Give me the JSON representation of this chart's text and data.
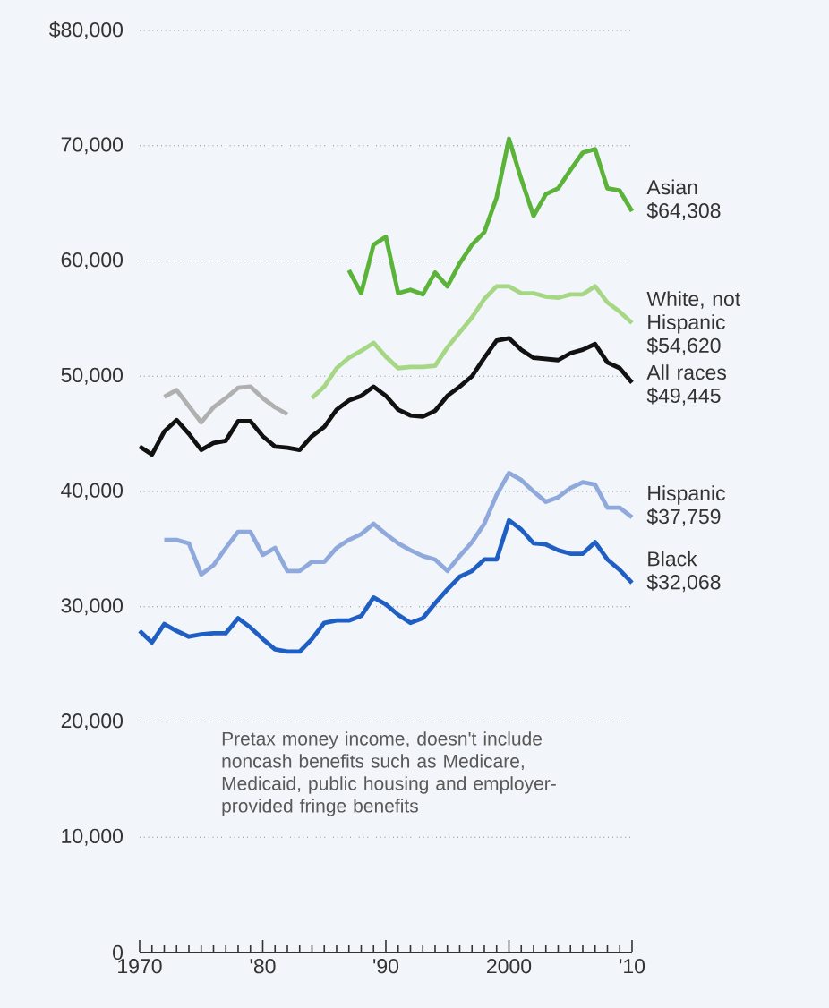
{
  "chart_data": {
    "type": "line",
    "ylim": [
      0,
      80000
    ],
    "yticks": [
      0,
      {
        "value": 10000,
        "label": "10,000"
      },
      {
        "value": 20000,
        "label": "20,000"
      },
      {
        "value": 30000,
        "label": "30,000"
      },
      {
        "value": 40000,
        "label": "40,000"
      },
      {
        "value": 50000,
        "label": "50,000"
      },
      {
        "value": 60000,
        "label": "60,000"
      },
      {
        "value": 70000,
        "label": "70,000"
      },
      {
        "value": 80000,
        "label": "$80,000"
      }
    ],
    "xlim": [
      1970,
      2010
    ],
    "xticks": [
      1970,
      {
        "value": 1980,
        "label": "'80"
      },
      {
        "value": 1990,
        "label": "'90"
      },
      2000,
      {
        "value": 2010,
        "label": "'10"
      }
    ],
    "grid": "y",
    "legend": false,
    "marker": "none",
    "line_style": "solid",
    "series": [
      {
        "name": "Asian",
        "color": "#5bb33a",
        "x": [
          1987,
          1988,
          1989,
          1990,
          1991,
          1992,
          1993,
          1994,
          1995,
          1996,
          1997,
          1998,
          1999,
          2000,
          2001,
          2002,
          2003,
          2004,
          2005,
          2006,
          2007,
          2008,
          2009,
          2010
        ],
        "values": [
          59200,
          57200,
          61400,
          62100,
          57200,
          57500,
          57100,
          59000,
          57800,
          59800,
          61400,
          62500,
          65500,
          70600,
          67100,
          63900,
          65800,
          66300,
          67900,
          69400,
          69700,
          66300,
          66100,
          64308
        ],
        "value_labels": [
          null,
          null,
          null,
          null,
          null,
          null,
          null,
          null,
          null,
          null,
          null,
          null,
          null,
          null,
          null,
          null,
          null,
          null,
          null,
          null,
          null,
          null,
          null,
          "$64,308"
        ]
      },
      {
        "name": "White, not Hispanic",
        "color": "#a6d785",
        "x": [
          1984,
          1985,
          1986,
          1987,
          1988,
          1989,
          1990,
          1991,
          1992,
          1993,
          1994,
          1995,
          1996,
          1997,
          1998,
          1999,
          2000,
          2001,
          2002,
          2003,
          2004,
          2005,
          2006,
          2007,
          2008,
          2009,
          2010
        ],
        "values": [
          48100,
          49100,
          50700,
          51600,
          52200,
          52900,
          51700,
          50700,
          50800,
          50800,
          50900,
          52500,
          53800,
          55100,
          56700,
          57800,
          57800,
          57200,
          57200,
          56900,
          56800,
          57100,
          57100,
          57800,
          56400,
          55600,
          54620
        ],
        "value_labels": [
          null,
          null,
          null,
          null,
          null,
          null,
          null,
          null,
          null,
          null,
          null,
          null,
          null,
          null,
          null,
          null,
          null,
          null,
          null,
          null,
          null,
          null,
          null,
          null,
          null,
          null,
          "$54,620"
        ]
      },
      {
        "color": "#b0b0b0",
        "x": [
          1972,
          1973,
          1974,
          1975,
          1976,
          1977,
          1978,
          1979,
          1980,
          1981,
          1982
        ],
        "values": [
          48200,
          48800,
          47400,
          46000,
          47300,
          48100,
          49000,
          49100,
          48100,
          47300,
          46700
        ]
      },
      {
        "name": "All races",
        "color": "#111111",
        "x": [
          1970,
          1971,
          1972,
          1973,
          1974,
          1975,
          1976,
          1977,
          1978,
          1979,
          1980,
          1981,
          1982,
          1983,
          1984,
          1985,
          1986,
          1987,
          1988,
          1989,
          1990,
          1991,
          1992,
          1993,
          1994,
          1995,
          1996,
          1997,
          1998,
          1999,
          2000,
          2001,
          2002,
          2003,
          2004,
          2005,
          2006,
          2007,
          2008,
          2009,
          2010
        ],
        "values": [
          43900,
          43200,
          45200,
          46200,
          45000,
          43600,
          44200,
          44400,
          46100,
          46100,
          44800,
          43900,
          43800,
          43600,
          44800,
          45600,
          47100,
          47900,
          48300,
          49100,
          48300,
          47100,
          46600,
          46500,
          47000,
          48300,
          49100,
          50000,
          51600,
          53100,
          53300,
          52300,
          51600,
          51500,
          51400,
          52000,
          52300,
          52800,
          51200,
          50700,
          49445
        ],
        "value_labels": [
          null,
          null,
          null,
          null,
          null,
          null,
          null,
          null,
          null,
          null,
          null,
          null,
          null,
          null,
          null,
          null,
          null,
          null,
          null,
          null,
          null,
          null,
          null,
          null,
          null,
          null,
          null,
          null,
          null,
          null,
          null,
          null,
          null,
          null,
          null,
          null,
          null,
          null,
          null,
          null,
          "$49,445"
        ]
      },
      {
        "name": "Hispanic",
        "color": "#8fa9dc",
        "x": [
          1972,
          1973,
          1974,
          1975,
          1976,
          1977,
          1978,
          1979,
          1980,
          1981,
          1982,
          1983,
          1984,
          1985,
          1986,
          1987,
          1988,
          1989,
          1990,
          1991,
          1992,
          1993,
          1994,
          1995,
          1996,
          1997,
          1998,
          1999,
          2000,
          2001,
          2002,
          2003,
          2004,
          2005,
          2006,
          2007,
          2008,
          2009,
          2010
        ],
        "values": [
          35800,
          35800,
          35500,
          32800,
          33600,
          35100,
          36500,
          36500,
          34500,
          35100,
          33100,
          33100,
          33900,
          33900,
          35100,
          35800,
          36300,
          37200,
          36300,
          35500,
          34900,
          34400,
          34100,
          33100,
          34400,
          35600,
          37200,
          39700,
          41600,
          41000,
          40000,
          39100,
          39500,
          40300,
          40800,
          40600,
          38600,
          38600,
          37759
        ],
        "value_labels": [
          null,
          null,
          null,
          null,
          null,
          null,
          null,
          null,
          null,
          null,
          null,
          null,
          null,
          null,
          null,
          null,
          null,
          null,
          null,
          null,
          null,
          null,
          null,
          null,
          null,
          null,
          null,
          null,
          null,
          null,
          null,
          null,
          null,
          null,
          null,
          null,
          null,
          null,
          "$37,759"
        ]
      },
      {
        "name": "Black",
        "color": "#1f5fc4",
        "x": [
          1970,
          1971,
          1972,
          1973,
          1974,
          1975,
          1976,
          1977,
          1978,
          1979,
          1980,
          1981,
          1982,
          1983,
          1984,
          1985,
          1986,
          1987,
          1988,
          1989,
          1990,
          1991,
          1992,
          1993,
          1994,
          1995,
          1996,
          1997,
          1998,
          1999,
          2000,
          2001,
          2002,
          2003,
          2004,
          2005,
          2006,
          2007,
          2008,
          2009,
          2010
        ],
        "values": [
          27900,
          26900,
          28500,
          27900,
          27400,
          27600,
          27700,
          27700,
          29000,
          28200,
          27200,
          26300,
          26100,
          26100,
          27200,
          28600,
          28800,
          28800,
          29200,
          30800,
          30200,
          29300,
          28600,
          29000,
          30300,
          31500,
          32600,
          33100,
          34100,
          34100,
          37500,
          36700,
          35500,
          35400,
          34900,
          34600,
          34600,
          35600,
          34100,
          33200,
          32068
        ],
        "value_labels": [
          null,
          null,
          null,
          null,
          null,
          null,
          null,
          null,
          null,
          null,
          null,
          null,
          null,
          null,
          null,
          null,
          null,
          null,
          null,
          null,
          null,
          null,
          null,
          null,
          null,
          null,
          null,
          null,
          null,
          null,
          null,
          null,
          null,
          null,
          null,
          null,
          null,
          null,
          null,
          null,
          "$32,068"
        ]
      }
    ],
    "annotations": [
      "Pretax money income, doesn't include noncash benefits such as Medicare, Medicaid, public housing and employer-provided fringe benefits"
    ]
  }
}
